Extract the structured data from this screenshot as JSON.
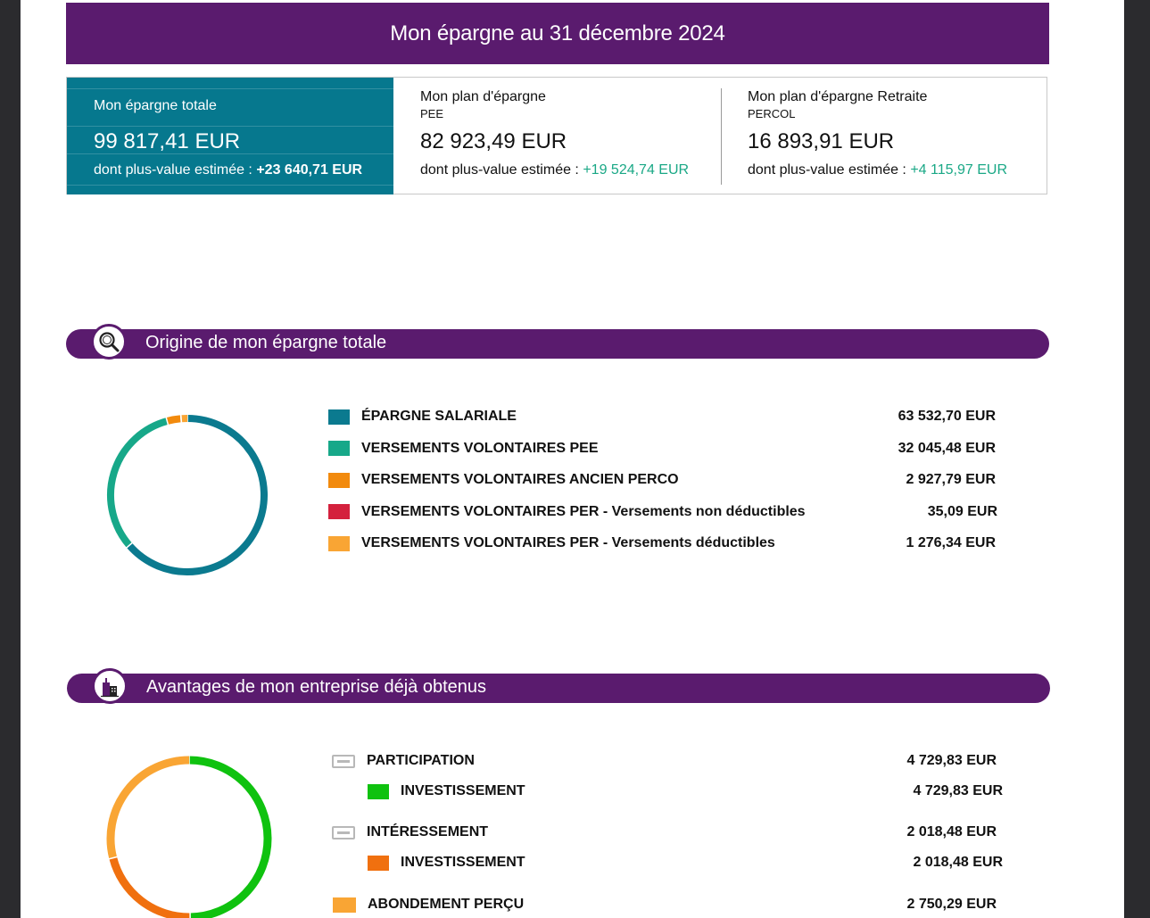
{
  "header": {
    "title": "Mon épargne au 31 décembre 2024"
  },
  "summary": {
    "total": {
      "label": "Mon épargne totale",
      "amount": "99 817,41 EUR",
      "gain_label": "dont plus-value estimée : ",
      "gain_value": "+23 640,71 EUR"
    },
    "plans": [
      {
        "label": "Mon plan d'épargne",
        "code": "PEE",
        "amount": "82 923,49 EUR",
        "gain_label": "dont plus-value estimée : ",
        "gain_value": "+19 524,74 EUR"
      },
      {
        "label": "Mon plan d'épargne Retraite",
        "code": "PERCOL",
        "amount": "16 893,91 EUR",
        "gain_label": "dont plus-value estimée : ",
        "gain_value": "+4 115,97 EUR"
      }
    ]
  },
  "origin_section": {
    "title": "Origine de mon épargne totale",
    "icon": "magnifier-icon",
    "chart_data": {
      "type": "pie",
      "style": "donut",
      "categories": [
        "ÉPARGNE SALARIALE",
        "VERSEMENTS VOLONTAIRES PEE",
        "VERSEMENTS VOLONTAIRES ANCIEN PERCO",
        "VERSEMENTS VOLONTAIRES PER - Versements non déductibles",
        "VERSEMENTS VOLONTAIRES PER - Versements déductibles"
      ],
      "values": [
        63532.7,
        32045.48,
        2927.79,
        35.09,
        1276.34
      ],
      "colors": [
        "#0b7a8f",
        "#17a889",
        "#f28a0d",
        "#d4213d",
        "#f9a534"
      ],
      "display_values": [
        "63 532,70 EUR",
        "32 045,48 EUR",
        "2 927,79 EUR",
        "35,09 EUR",
        "1 276,34 EUR"
      ]
    }
  },
  "benefits_section": {
    "title": "Avantages de mon entreprise déjà obtenus",
    "icon": "building-icon",
    "items": [
      {
        "label": "PARTICIPATION",
        "amount": "4 729,83 EUR",
        "kind": "group",
        "child": {
          "label": "INVESTISSEMENT",
          "amount": "4 729,83 EUR",
          "color": "#0fc20f"
        }
      },
      {
        "label": "INTÉRESSEMENT",
        "amount": "2 018,48 EUR",
        "kind": "group",
        "child": {
          "label": "INVESTISSEMENT",
          "amount": "2 018,48 EUR",
          "color": "#f0700f"
        }
      },
      {
        "label": "ABONDEMENT PERÇU",
        "amount": "2 750,29 EUR",
        "kind": "leaf",
        "color": "#f9a534"
      }
    ],
    "chart_data": {
      "type": "pie",
      "style": "donut",
      "categories": [
        "INVESTISSEMENT (PARTICIPATION)",
        "INVESTISSEMENT (INTÉRESSEMENT)",
        "ABONDEMENT PERÇU"
      ],
      "values": [
        4729.83,
        2018.48,
        2750.29
      ],
      "colors": [
        "#0fc20f",
        "#f0700f",
        "#f9a534"
      ]
    }
  }
}
